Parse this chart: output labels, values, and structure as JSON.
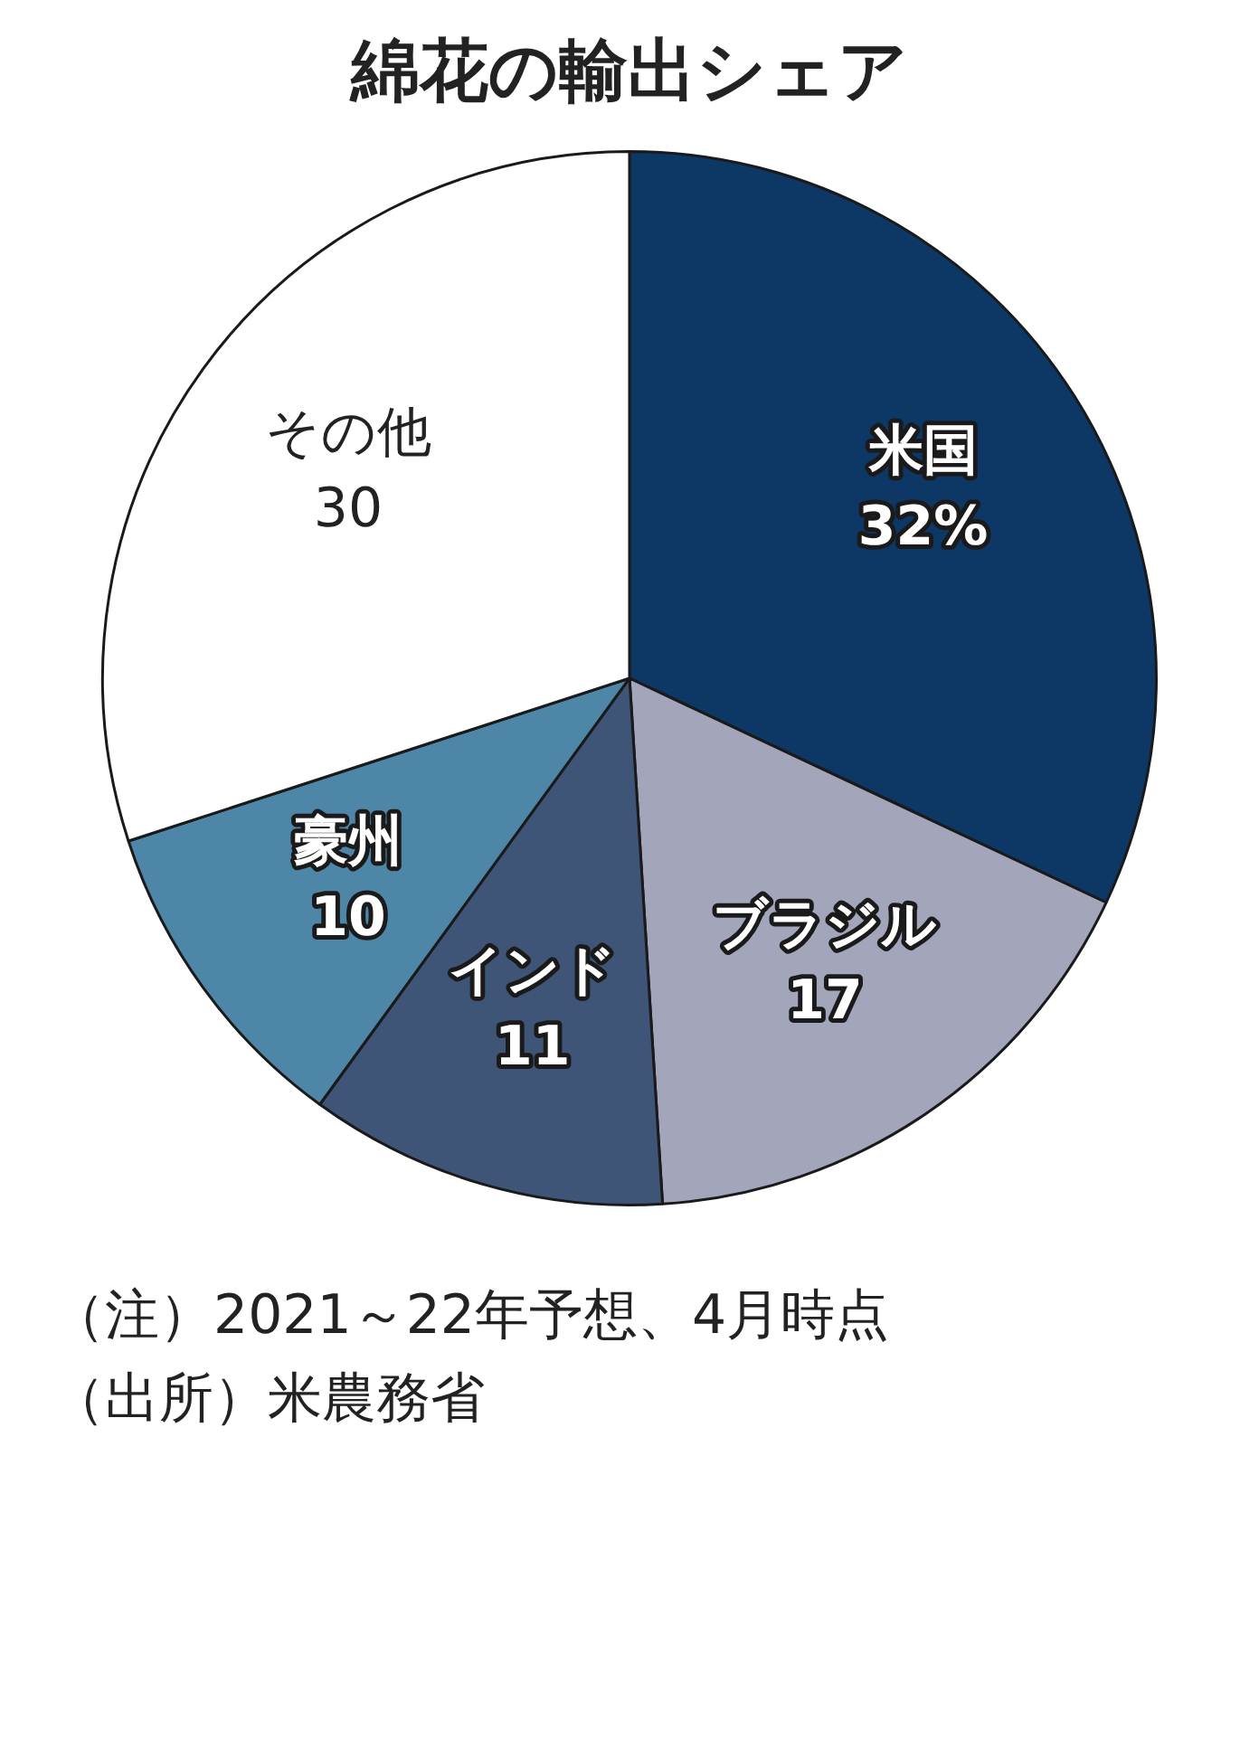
{
  "chart_data": {
    "type": "pie",
    "title": "綿花の輸出シェア",
    "categories": [
      "米国",
      "ブラジル",
      "インド",
      "豪州",
      "その他"
    ],
    "values": [
      32,
      17,
      11,
      10,
      30
    ],
    "colors": [
      "#0d3764",
      "#a3a6bb",
      "#3f5577",
      "#4e86a8",
      "#ffffff"
    ],
    "value_labels": [
      "32%",
      "17",
      "11",
      "10",
      "30"
    ],
    "annotations": [
      "（注）2021～22年予想、4月時点",
      "（出所）米農務省"
    ]
  }
}
